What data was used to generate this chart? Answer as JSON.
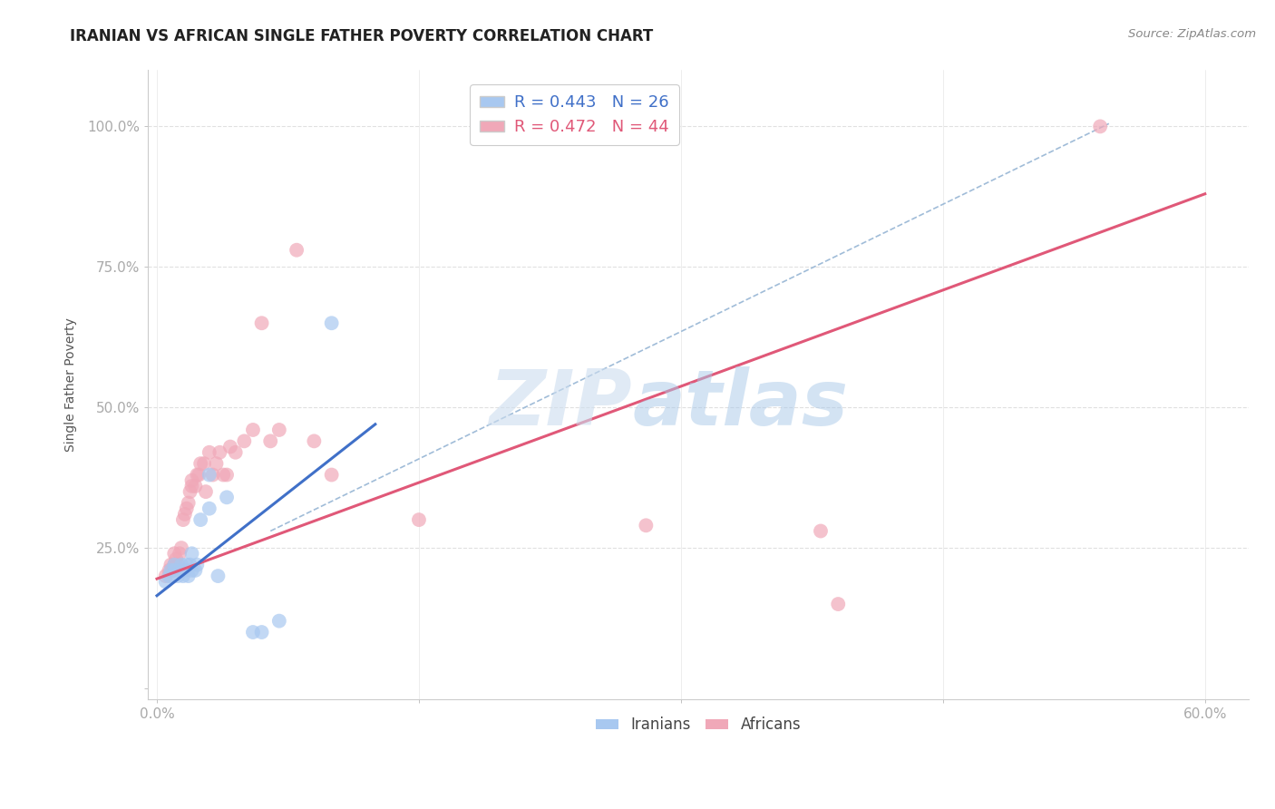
{
  "title": "IRANIAN VS AFRICAN SINGLE FATHER POVERTY CORRELATION CHART",
  "source": "Source: ZipAtlas.com",
  "ylabel": "Single Father Poverty",
  "xlim": [
    -0.005,
    0.625
  ],
  "ylim": [
    -0.02,
    1.1
  ],
  "xticks": [
    0.0,
    0.15,
    0.3,
    0.45,
    0.6
  ],
  "xtick_labels": [
    "0.0%",
    "",
    "",
    "",
    "60.0%"
  ],
  "yticks": [
    0.0,
    0.25,
    0.5,
    0.75,
    1.0
  ],
  "ytick_labels": [
    "",
    "25.0%",
    "50.0%",
    "75.0%",
    "100.0%"
  ],
  "R_iranian": 0.443,
  "N_iranian": 26,
  "R_african": 0.472,
  "N_african": 44,
  "iranian_color": "#a8c8f0",
  "african_color": "#f0a8b8",
  "iranian_line_color": "#4070c8",
  "african_line_color": "#e05878",
  "dashed_line_color": "#a0bcd8",
  "background_color": "#ffffff",
  "grid_color": "#e0e0e0",
  "title_color": "#222222",
  "axis_tick_color": "#4070c8",
  "iranians_x": [
    0.005,
    0.007,
    0.008,
    0.01,
    0.01,
    0.012,
    0.013,
    0.014,
    0.015,
    0.016,
    0.017,
    0.018,
    0.019,
    0.02,
    0.02,
    0.022,
    0.023,
    0.025,
    0.03,
    0.03,
    0.035,
    0.04,
    0.055,
    0.06,
    0.07,
    0.1
  ],
  "iranians_y": [
    0.19,
    0.2,
    0.21,
    0.21,
    0.22,
    0.2,
    0.21,
    0.22,
    0.2,
    0.21,
    0.22,
    0.2,
    0.22,
    0.21,
    0.24,
    0.21,
    0.22,
    0.3,
    0.32,
    0.38,
    0.2,
    0.34,
    0.1,
    0.1,
    0.12,
    0.65
  ],
  "africans_x": [
    0.005,
    0.007,
    0.008,
    0.009,
    0.01,
    0.01,
    0.011,
    0.012,
    0.013,
    0.014,
    0.015,
    0.016,
    0.017,
    0.018,
    0.019,
    0.02,
    0.02,
    0.022,
    0.023,
    0.024,
    0.025,
    0.027,
    0.028,
    0.03,
    0.032,
    0.034,
    0.036,
    0.038,
    0.04,
    0.042,
    0.045,
    0.05,
    0.055,
    0.06,
    0.065,
    0.07,
    0.08,
    0.09,
    0.1,
    0.15,
    0.28,
    0.38,
    0.39,
    0.54
  ],
  "africans_y": [
    0.2,
    0.21,
    0.22,
    0.21,
    0.22,
    0.24,
    0.23,
    0.22,
    0.24,
    0.25,
    0.3,
    0.31,
    0.32,
    0.33,
    0.35,
    0.36,
    0.37,
    0.36,
    0.38,
    0.38,
    0.4,
    0.4,
    0.35,
    0.42,
    0.38,
    0.4,
    0.42,
    0.38,
    0.38,
    0.43,
    0.42,
    0.44,
    0.46,
    0.65,
    0.44,
    0.46,
    0.78,
    0.44,
    0.38,
    0.3,
    0.29,
    0.28,
    0.15,
    1.0
  ],
  "iranian_line_x": [
    0.0,
    0.125
  ],
  "iranian_line_y": [
    0.165,
    0.47
  ],
  "african_line_x": [
    0.0,
    0.6
  ],
  "african_line_y": [
    0.195,
    0.88
  ],
  "dashed_line_x": [
    0.065,
    0.545
  ],
  "dashed_line_y": [
    0.28,
    1.005
  ]
}
